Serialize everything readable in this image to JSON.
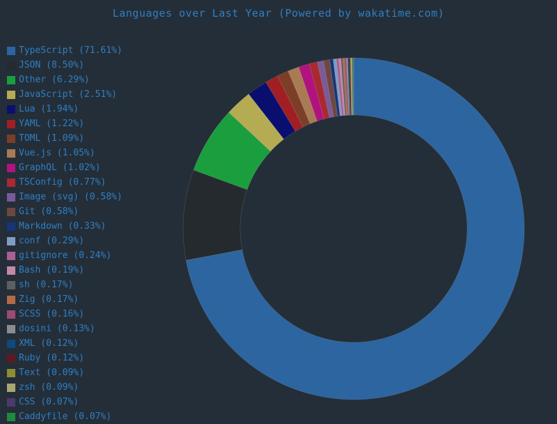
{
  "chart_data": {
    "type": "pie",
    "style": "donut",
    "title": "Languages over Last Year (Powered by wakatime.com)",
    "legend_position": "left",
    "slices": [
      {
        "label": "TypeScript (71.61%)",
        "value": 71.61,
        "color": "#2c65a0"
      },
      {
        "label": "JSON (8.50%)",
        "value": 8.5,
        "color": "#252a2f"
      },
      {
        "label": "Other (6.29%)",
        "value": 6.29,
        "color": "#1b9e3e"
      },
      {
        "label": "JavaScript (2.51%)",
        "value": 2.51,
        "color": "#b5ab52"
      },
      {
        "label": "Lua (1.94%)",
        "value": 1.94,
        "color": "#0a0e6e"
      },
      {
        "label": "YAML (1.22%)",
        "value": 1.22,
        "color": "#a01e24"
      },
      {
        "label": "TOML (1.09%)",
        "value": 1.09,
        "color": "#7d3e28"
      },
      {
        "label": "Vue.js (1.05%)",
        "value": 1.05,
        "color": "#a87b54"
      },
      {
        "label": "GraphQL (1.02%)",
        "value": 1.02,
        "color": "#b1137e"
      },
      {
        "label": "TSConfig (0.77%)",
        "value": 0.77,
        "color": "#a82a30"
      },
      {
        "label": "Image (svg) (0.58%)",
        "value": 0.58,
        "color": "#7a5a9a"
      },
      {
        "label": "Git (0.58%)",
        "value": 0.58,
        "color": "#6e4840"
      },
      {
        "label": "Markdown (0.33%)",
        "value": 0.33,
        "color": "#18347a"
      },
      {
        "label": "conf (0.29%)",
        "value": 0.29,
        "color": "#7f9cc4"
      },
      {
        "label": "gitignore (0.24%)",
        "value": 0.24,
        "color": "#a96092"
      },
      {
        "label": "Bash (0.19%)",
        "value": 0.19,
        "color": "#c488a8"
      },
      {
        "label": "sh (0.17%)",
        "value": 0.17,
        "color": "#5c6064"
      },
      {
        "label": "Zig (0.17%)",
        "value": 0.17,
        "color": "#b26a48"
      },
      {
        "label": "SCSS (0.16%)",
        "value": 0.16,
        "color": "#9a4c70"
      },
      {
        "label": "dosini (0.13%)",
        "value": 0.13,
        "color": "#8a8c90"
      },
      {
        "label": "XML (0.12%)",
        "value": 0.12,
        "color": "#0e4a7e"
      },
      {
        "label": "Ruby (0.12%)",
        "value": 0.12,
        "color": "#5e1a22"
      },
      {
        "label": "Text (0.09%)",
        "value": 0.09,
        "color": "#8f8c34"
      },
      {
        "label": "zsh (0.09%)",
        "value": 0.09,
        "color": "#a8a872"
      },
      {
        "label": "CSS (0.07%)",
        "value": 0.07,
        "color": "#4c3a6c"
      },
      {
        "label": "Caddyfile (0.07%)",
        "value": 0.07,
        "color": "#1d8a3e"
      }
    ]
  }
}
